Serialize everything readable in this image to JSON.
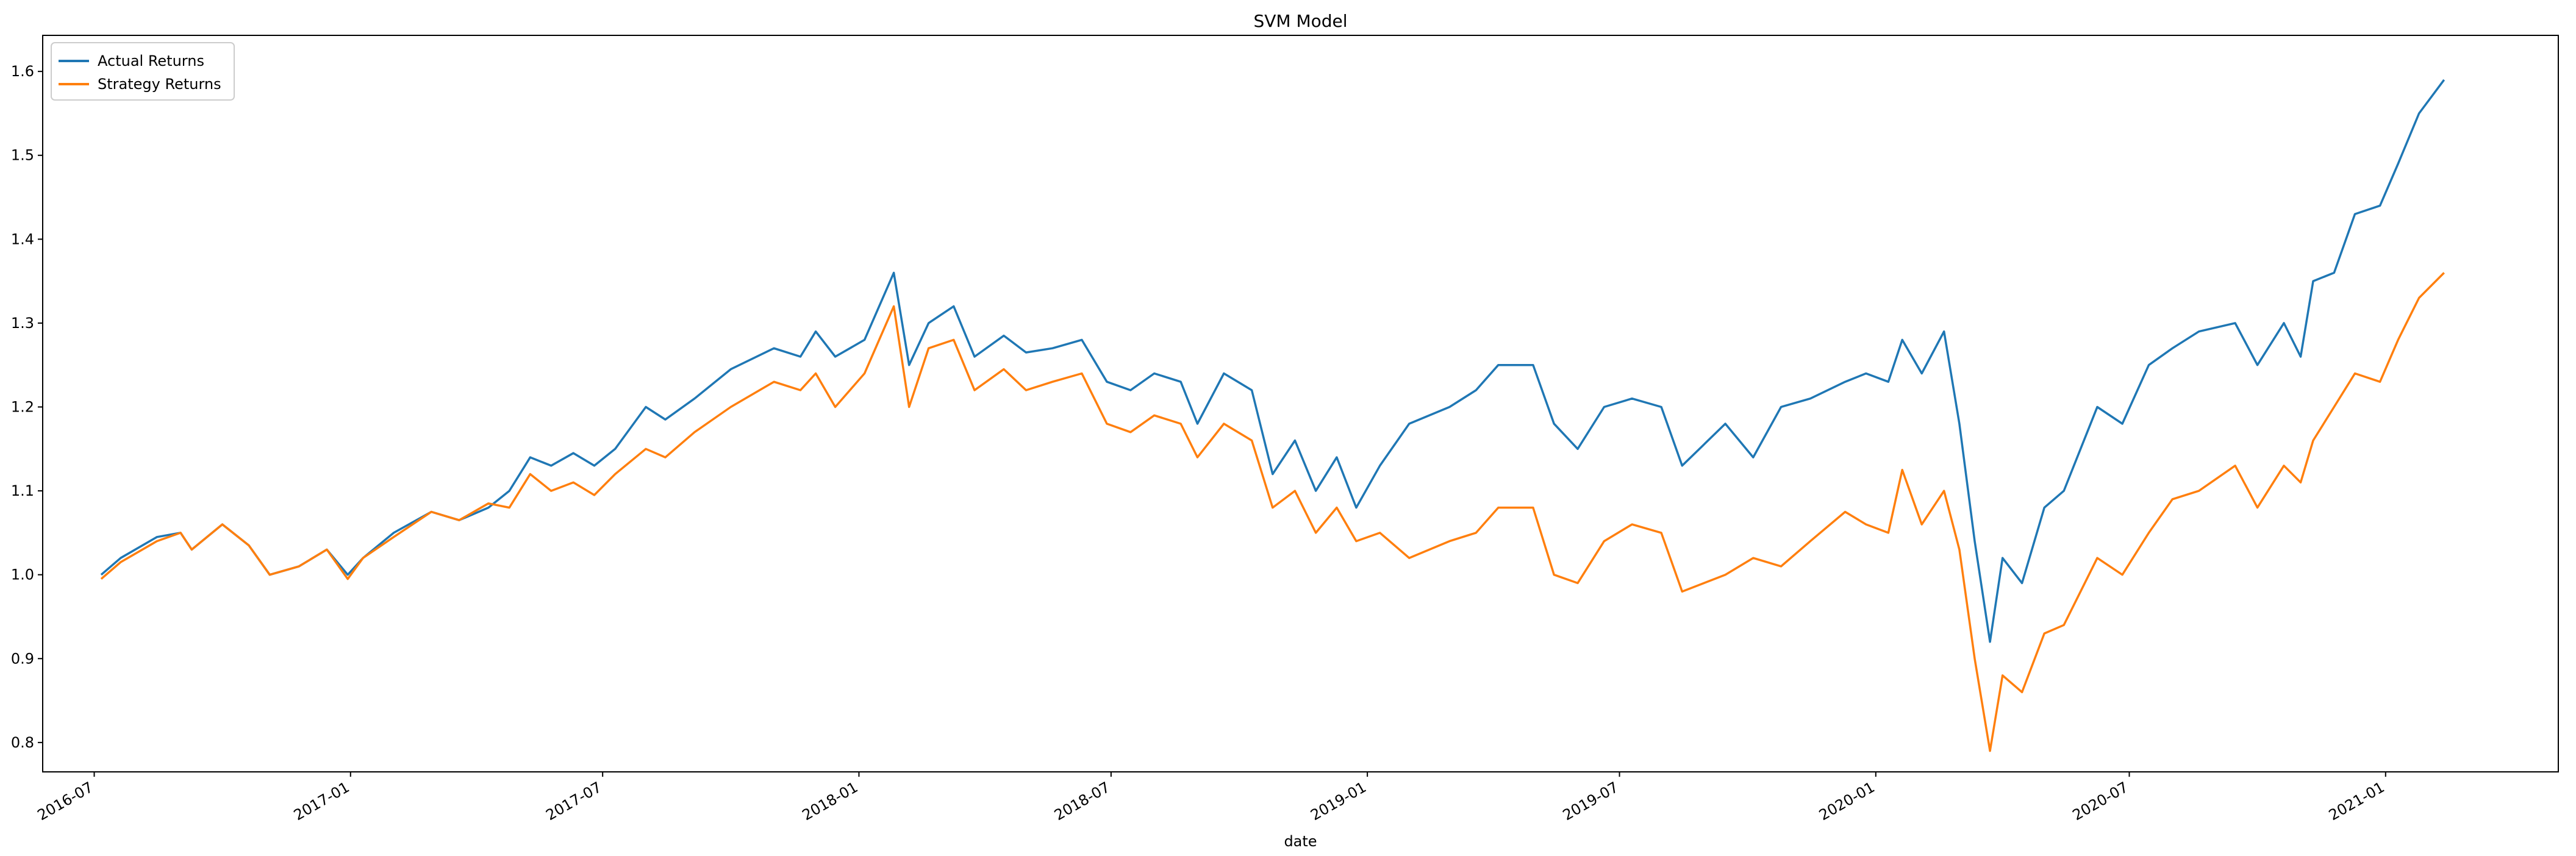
{
  "chart_data": {
    "type": "line",
    "title": "SVM Model",
    "xlabel": "date",
    "ylabel": "",
    "xlim": [
      "2016-05-25",
      "2021-05-05"
    ],
    "ylim": [
      0.765,
      1.643
    ],
    "yticks": [
      0.8,
      0.9,
      1.0,
      1.1,
      1.2,
      1.3,
      1.4,
      1.5,
      1.6
    ],
    "xticks": [
      {
        "date": "2016-07-01",
        "label": "2016-07"
      },
      {
        "date": "2017-01-01",
        "label": "2017-01"
      },
      {
        "date": "2017-07-01",
        "label": "2017-07"
      },
      {
        "date": "2018-01-01",
        "label": "2018-01"
      },
      {
        "date": "2018-07-01",
        "label": "2018-07"
      },
      {
        "date": "2019-01-01",
        "label": "2019-01"
      },
      {
        "date": "2019-07-01",
        "label": "2019-07"
      },
      {
        "date": "2020-01-01",
        "label": "2020-01"
      },
      {
        "date": "2020-07-01",
        "label": "2020-07"
      },
      {
        "date": "2021-01-01",
        "label": "2021-01"
      }
    ],
    "grid": false,
    "legend": "top-left",
    "series": [
      {
        "name": "Actual Returns",
        "color": "#1f77b4",
        "points": [
          [
            "2016-07-06",
            1.0
          ],
          [
            "2016-07-20",
            1.02
          ],
          [
            "2016-08-15",
            1.045
          ],
          [
            "2016-09-01",
            1.05
          ],
          [
            "2016-09-09",
            1.03
          ],
          [
            "2016-10-01",
            1.06
          ],
          [
            "2016-10-20",
            1.035
          ],
          [
            "2016-11-04",
            1.0
          ],
          [
            "2016-11-25",
            1.01
          ],
          [
            "2016-12-15",
            1.03
          ],
          [
            "2016-12-30",
            1.0
          ],
          [
            "2017-01-10",
            1.02
          ],
          [
            "2017-02-01",
            1.05
          ],
          [
            "2017-02-28",
            1.075
          ],
          [
            "2017-03-20",
            1.065
          ],
          [
            "2017-04-10",
            1.08
          ],
          [
            "2017-04-25",
            1.1
          ],
          [
            "2017-05-10",
            1.14
          ],
          [
            "2017-05-25",
            1.13
          ],
          [
            "2017-06-10",
            1.145
          ],
          [
            "2017-06-25",
            1.13
          ],
          [
            "2017-07-10",
            1.15
          ],
          [
            "2017-08-01",
            1.2
          ],
          [
            "2017-08-15",
            1.185
          ],
          [
            "2017-09-05",
            1.21
          ],
          [
            "2017-10-01",
            1.245
          ],
          [
            "2017-11-01",
            1.27
          ],
          [
            "2017-11-20",
            1.26
          ],
          [
            "2017-12-01",
            1.29
          ],
          [
            "2017-12-15",
            1.26
          ],
          [
            "2018-01-05",
            1.28
          ],
          [
            "2018-01-26",
            1.36
          ],
          [
            "2018-02-06",
            1.25
          ],
          [
            "2018-02-20",
            1.3
          ],
          [
            "2018-03-10",
            1.32
          ],
          [
            "2018-03-25",
            1.26
          ],
          [
            "2018-04-15",
            1.285
          ],
          [
            "2018-05-01",
            1.265
          ],
          [
            "2018-05-20",
            1.27
          ],
          [
            "2018-06-10",
            1.28
          ],
          [
            "2018-06-28",
            1.23
          ],
          [
            "2018-07-15",
            1.22
          ],
          [
            "2018-08-01",
            1.24
          ],
          [
            "2018-08-20",
            1.23
          ],
          [
            "2018-09-01",
            1.18
          ],
          [
            "2018-09-20",
            1.24
          ],
          [
            "2018-10-10",
            1.22
          ],
          [
            "2018-10-25",
            1.12
          ],
          [
            "2018-11-10",
            1.16
          ],
          [
            "2018-11-25",
            1.1
          ],
          [
            "2018-12-10",
            1.14
          ],
          [
            "2018-12-24",
            1.08
          ],
          [
            "2019-01-10",
            1.13
          ],
          [
            "2019-01-31",
            1.18
          ],
          [
            "2019-03-01",
            1.2
          ],
          [
            "2019-03-20",
            1.22
          ],
          [
            "2019-04-05",
            1.25
          ],
          [
            "2019-04-30",
            1.25
          ],
          [
            "2019-05-15",
            1.18
          ],
          [
            "2019-06-01",
            1.15
          ],
          [
            "2019-06-20",
            1.2
          ],
          [
            "2019-07-10",
            1.21
          ],
          [
            "2019-07-31",
            1.2
          ],
          [
            "2019-08-15",
            1.13
          ],
          [
            "2019-09-15",
            1.18
          ],
          [
            "2019-10-05",
            1.14
          ],
          [
            "2019-10-25",
            1.2
          ],
          [
            "2019-11-15",
            1.21
          ],
          [
            "2019-12-10",
            1.23
          ],
          [
            "2019-12-25",
            1.24
          ],
          [
            "2020-01-10",
            1.23
          ],
          [
            "2020-01-20",
            1.28
          ],
          [
            "2020-02-03",
            1.24
          ],
          [
            "2020-02-19",
            1.29
          ],
          [
            "2020-03-01",
            1.18
          ],
          [
            "2020-03-12",
            1.04
          ],
          [
            "2020-03-23",
            0.92
          ],
          [
            "2020-04-01",
            1.02
          ],
          [
            "2020-04-15",
            0.99
          ],
          [
            "2020-05-01",
            1.08
          ],
          [
            "2020-05-15",
            1.1
          ],
          [
            "2020-06-08",
            1.2
          ],
          [
            "2020-06-26",
            1.18
          ],
          [
            "2020-07-15",
            1.25
          ],
          [
            "2020-08-01",
            1.27
          ],
          [
            "2020-08-20",
            1.29
          ],
          [
            "2020-09-15",
            1.3
          ],
          [
            "2020-10-01",
            1.25
          ],
          [
            "2020-10-20",
            1.3
          ],
          [
            "2020-11-01",
            1.26
          ],
          [
            "2020-11-10",
            1.35
          ],
          [
            "2020-11-25",
            1.36
          ],
          [
            "2020-12-10",
            1.43
          ],
          [
            "2020-12-28",
            1.44
          ],
          [
            "2021-01-10",
            1.49
          ],
          [
            "2021-01-25",
            1.55
          ],
          [
            "2021-02-12",
            1.59
          ]
        ]
      },
      {
        "name": "Strategy Returns",
        "color": "#ff7f0e",
        "points": [
          [
            "2016-07-06",
            0.995
          ],
          [
            "2016-07-20",
            1.015
          ],
          [
            "2016-08-15",
            1.04
          ],
          [
            "2016-09-01",
            1.05
          ],
          [
            "2016-09-09",
            1.03
          ],
          [
            "2016-10-01",
            1.06
          ],
          [
            "2016-10-20",
            1.035
          ],
          [
            "2016-11-04",
            1.0
          ],
          [
            "2016-11-25",
            1.01
          ],
          [
            "2016-12-15",
            1.03
          ],
          [
            "2016-12-30",
            0.995
          ],
          [
            "2017-01-10",
            1.02
          ],
          [
            "2017-02-01",
            1.045
          ],
          [
            "2017-02-28",
            1.075
          ],
          [
            "2017-03-20",
            1.065
          ],
          [
            "2017-04-10",
            1.085
          ],
          [
            "2017-04-25",
            1.08
          ],
          [
            "2017-05-10",
            1.12
          ],
          [
            "2017-05-25",
            1.1
          ],
          [
            "2017-06-10",
            1.11
          ],
          [
            "2017-06-25",
            1.095
          ],
          [
            "2017-07-10",
            1.12
          ],
          [
            "2017-08-01",
            1.15
          ],
          [
            "2017-08-15",
            1.14
          ],
          [
            "2017-09-05",
            1.17
          ],
          [
            "2017-10-01",
            1.2
          ],
          [
            "2017-11-01",
            1.23
          ],
          [
            "2017-11-20",
            1.22
          ],
          [
            "2017-12-01",
            1.24
          ],
          [
            "2017-12-15",
            1.2
          ],
          [
            "2018-01-05",
            1.24
          ],
          [
            "2018-01-26",
            1.32
          ],
          [
            "2018-02-06",
            1.2
          ],
          [
            "2018-02-20",
            1.27
          ],
          [
            "2018-03-10",
            1.28
          ],
          [
            "2018-03-25",
            1.22
          ],
          [
            "2018-04-15",
            1.245
          ],
          [
            "2018-05-01",
            1.22
          ],
          [
            "2018-05-20",
            1.23
          ],
          [
            "2018-06-10",
            1.24
          ],
          [
            "2018-06-28",
            1.18
          ],
          [
            "2018-07-15",
            1.17
          ],
          [
            "2018-08-01",
            1.19
          ],
          [
            "2018-08-20",
            1.18
          ],
          [
            "2018-09-01",
            1.14
          ],
          [
            "2018-09-20",
            1.18
          ],
          [
            "2018-10-10",
            1.16
          ],
          [
            "2018-10-25",
            1.08
          ],
          [
            "2018-11-10",
            1.1
          ],
          [
            "2018-11-25",
            1.05
          ],
          [
            "2018-12-10",
            1.08
          ],
          [
            "2018-12-24",
            1.04
          ],
          [
            "2019-01-10",
            1.05
          ],
          [
            "2019-01-31",
            1.02
          ],
          [
            "2019-03-01",
            1.04
          ],
          [
            "2019-03-20",
            1.05
          ],
          [
            "2019-04-05",
            1.08
          ],
          [
            "2019-04-30",
            1.08
          ],
          [
            "2019-05-15",
            1.0
          ],
          [
            "2019-06-01",
            0.99
          ],
          [
            "2019-06-20",
            1.04
          ],
          [
            "2019-07-10",
            1.06
          ],
          [
            "2019-07-31",
            1.05
          ],
          [
            "2019-08-15",
            0.98
          ],
          [
            "2019-09-15",
            1.0
          ],
          [
            "2019-10-05",
            1.02
          ],
          [
            "2019-10-25",
            1.01
          ],
          [
            "2019-11-15",
            1.04
          ],
          [
            "2019-12-10",
            1.075
          ],
          [
            "2019-12-25",
            1.06
          ],
          [
            "2020-01-10",
            1.05
          ],
          [
            "2020-01-20",
            1.125
          ],
          [
            "2020-02-03",
            1.06
          ],
          [
            "2020-02-19",
            1.1
          ],
          [
            "2020-03-01",
            1.03
          ],
          [
            "2020-03-12",
            0.9
          ],
          [
            "2020-03-23",
            0.79
          ],
          [
            "2020-04-01",
            0.88
          ],
          [
            "2020-04-15",
            0.86
          ],
          [
            "2020-05-01",
            0.93
          ],
          [
            "2020-05-15",
            0.94
          ],
          [
            "2020-06-08",
            1.02
          ],
          [
            "2020-06-26",
            1.0
          ],
          [
            "2020-07-15",
            1.05
          ],
          [
            "2020-08-01",
            1.09
          ],
          [
            "2020-08-20",
            1.1
          ],
          [
            "2020-09-15",
            1.13
          ],
          [
            "2020-10-01",
            1.08
          ],
          [
            "2020-10-20",
            1.13
          ],
          [
            "2020-11-01",
            1.11
          ],
          [
            "2020-11-10",
            1.16
          ],
          [
            "2020-11-25",
            1.2
          ],
          [
            "2020-12-10",
            1.24
          ],
          [
            "2020-12-28",
            1.23
          ],
          [
            "2021-01-10",
            1.28
          ],
          [
            "2021-01-25",
            1.33
          ],
          [
            "2021-02-12",
            1.36
          ]
        ]
      }
    ]
  }
}
